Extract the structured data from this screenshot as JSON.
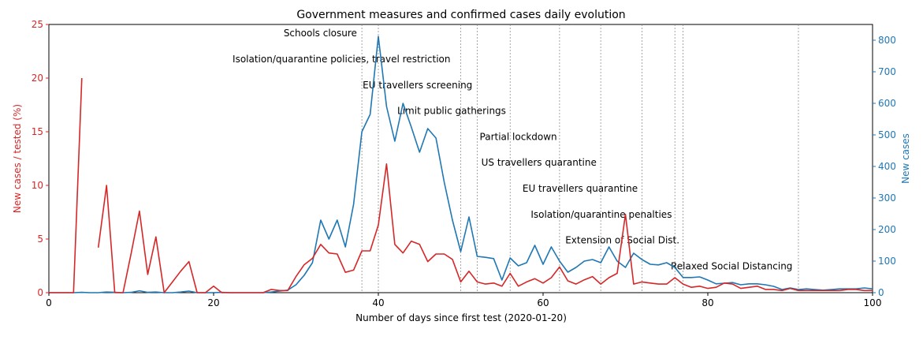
{
  "chart_data": {
    "type": "line",
    "title": "Government measures and confirmed cases daily evolution",
    "xlabel": "Number of days since first test (2020-01-20)",
    "ylabel_left": "New cases / tested (%)",
    "ylabel_right": "New cases",
    "xlim": [
      0,
      100
    ],
    "ylim_left": [
      0,
      25
    ],
    "ylim_right": [
      0,
      850
    ],
    "x_ticks": [
      "0",
      "20",
      "40",
      "60",
      "80",
      "100"
    ],
    "y_left_ticks": [
      "0",
      "5",
      "10",
      "15",
      "20",
      "25"
    ],
    "y_right_ticks": [
      "0",
      "100",
      "200",
      "300",
      "400",
      "500",
      "600",
      "700",
      "800"
    ],
    "grid": false,
    "colors": {
      "left": "#d62728",
      "right": "#1f77b4",
      "measure_line": "#808080"
    },
    "series": [
      {
        "axis": "left",
        "segments": [
          {
            "x": [
              0,
              1,
              2,
              3,
              4
            ],
            "y": [
              0,
              0,
              0,
              0,
              20
            ]
          },
          {
            "x": [
              6,
              7,
              8,
              9,
              10,
              11,
              12,
              13,
              14,
              15,
              16,
              17,
              18,
              19,
              20,
              21,
              22,
              23,
              24,
              25,
              26,
              27,
              28,
              29,
              30,
              31,
              32,
              33,
              34,
              35,
              36,
              37,
              38,
              39,
              40,
              41,
              42,
              43,
              44,
              45,
              46,
              47,
              48,
              49,
              50,
              51,
              52,
              53,
              54,
              55,
              56,
              57,
              58,
              59,
              60,
              61,
              62,
              63,
              64,
              65,
              66,
              67,
              68,
              69,
              70,
              71,
              72,
              73,
              74,
              75,
              76,
              77,
              78,
              79,
              80,
              81,
              82,
              83,
              84,
              85,
              86,
              87,
              88,
              89,
              90,
              91,
              92,
              93,
              94,
              95,
              96,
              97,
              98,
              99,
              100
            ],
            "y": [
              4.2,
              10,
              0,
              0,
              3.7,
              7.6,
              1.7,
              5.2,
              0,
              1,
              2,
              2.9,
              0,
              0,
              0.6,
              0,
              0,
              0,
              0,
              0,
              0,
              0.3,
              0.2,
              0.2,
              1.5,
              2.6,
              3.2,
              4.5,
              3.7,
              3.6,
              1.9,
              2.1,
              3.9,
              3.9,
              6.3,
              12,
              4.5,
              3.7,
              4.8,
              4.5,
              2.9,
              3.6,
              3.6,
              3.1,
              1,
              2,
              1,
              0.8,
              0.9,
              0.6,
              1.8,
              0.6,
              1,
              1.3,
              0.9,
              1.4,
              2.4,
              1.1,
              0.8,
              1.2,
              1.5,
              0.8,
              1.4,
              1.8,
              7.3,
              0.8,
              1,
              0.9,
              0.8,
              0.8,
              1.4,
              0.8,
              0.5,
              0.6,
              0.4,
              0.5,
              0.9,
              0.8,
              0.4,
              0.5,
              0.6,
              0.3,
              0.3,
              0.2,
              0.4,
              0.2,
              0.2,
              0.2,
              0.2,
              0.2,
              0.2,
              0.3,
              0.3,
              0.2,
              0.2
            ]
          }
        ]
      },
      {
        "axis": "right",
        "segments": [
          {
            "x": [
              0,
              1,
              2,
              3,
              4,
              5,
              6,
              7,
              8,
              9,
              10,
              11,
              12,
              13,
              14,
              15,
              16,
              17,
              18,
              19,
              20,
              21,
              22,
              23,
              24,
              25,
              26,
              27,
              28,
              29,
              30,
              31,
              32,
              33,
              34,
              35,
              36,
              37,
              38,
              39,
              40,
              41,
              42,
              43,
              44,
              45,
              46,
              47,
              48,
              49,
              50,
              51,
              52,
              53,
              54,
              55,
              56,
              57,
              58,
              59,
              60,
              61,
              62,
              63,
              64,
              65,
              66,
              67,
              68,
              69,
              70,
              71,
              72,
              73,
              74,
              75,
              76,
              77,
              78,
              79,
              80,
              81,
              82,
              83,
              84,
              85,
              86,
              87,
              88,
              89,
              90,
              91,
              92,
              93,
              94,
              95,
              96,
              97,
              98,
              99,
              100
            ],
            "y": [
              0,
              0,
              0,
              0,
              1,
              0,
              0,
              2,
              1,
              0,
              1,
              6,
              1,
              2,
              0,
              0,
              2,
              5,
              0,
              0,
              0,
              1,
              0,
              0,
              0,
              0,
              0,
              2,
              5,
              8,
              25,
              55,
              95,
              230,
              170,
              230,
              145,
              280,
              510,
              565,
              812,
              590,
              480,
              600,
              525,
              445,
              520,
              490,
              350,
              230,
              130,
              240,
              115,
              112,
              108,
              40,
              110,
              85,
              95,
              150,
              90,
              145,
              100,
              65,
              80,
              100,
              105,
              95,
              145,
              100,
              80,
              125,
              105,
              90,
              88,
              95,
              80,
              48,
              48,
              50,
              40,
              28,
              30,
              32,
              25,
              28,
              28,
              25,
              20,
              10,
              15,
              10,
              12,
              10,
              8,
              10,
              12,
              12,
              12,
              15,
              12
            ]
          }
        ]
      }
    ],
    "measures": [
      {
        "x": 38,
        "label": "Schools closure"
      },
      {
        "x": 40,
        "label": "Isolation/quarantine policies, travel restriction"
      },
      {
        "x": 50,
        "label": "EU travellers screening"
      },
      {
        "x": 52,
        "label": "Limit public gatherings"
      },
      {
        "x": 56,
        "label": "Partial lockdown"
      },
      {
        "x": 62,
        "label": "US travellers quarantine"
      },
      {
        "x": 67,
        "label": "EU travellers quarantine"
      },
      {
        "x": 72,
        "label": "Isolation/quarantine penalties"
      },
      {
        "x": 76,
        "label": "Extension of Social Dist."
      },
      {
        "x": 77,
        "label": ""
      },
      {
        "x": 91,
        "label": "Relaxed Social Distancing"
      }
    ],
    "annotations": [
      {
        "text": "Schools closure",
        "x": 28.5,
        "y_right": 812
      },
      {
        "text": "Isolation/quarantine policies, travel restriction",
        "x": 22.3,
        "y_right": 730
      },
      {
        "text": "EU travellers screening",
        "x": 38.1,
        "y_right": 648
      },
      {
        "text": "Limit public gatherings",
        "x": 42.3,
        "y_right": 566
      },
      {
        "text": "Partial lockdown",
        "x": 52.3,
        "y_right": 484
      },
      {
        "text": "US travellers quarantine",
        "x": 52.5,
        "y_right": 402
      },
      {
        "text": "EU travellers quarantine",
        "x": 57.5,
        "y_right": 320
      },
      {
        "text": "Isolation/quarantine penalties",
        "x": 58.5,
        "y_right": 238
      },
      {
        "text": "Extension of Social Dist.",
        "x": 62.7,
        "y_right": 156
      },
      {
        "text": "Relaxed Social Distancing",
        "x": 75.5,
        "y_right": 74
      }
    ]
  }
}
